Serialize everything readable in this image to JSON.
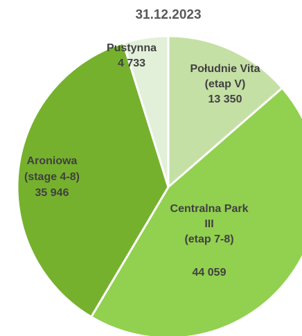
{
  "chart_data": {
    "type": "pie",
    "title": "31.12.2023",
    "categories": [
      [
        "Południe Vita",
        "(etap V)"
      ],
      [
        "Centralna Park",
        "III",
        "(etap 7-8)"
      ],
      [
        "Aroniowa",
        "(stage 4-8)"
      ],
      [
        "Pustynna"
      ]
    ],
    "values": [
      13350,
      44059,
      35946,
      4733
    ],
    "value_labels": [
      "13 350",
      "44 059",
      "35 946",
      "4 733"
    ],
    "colors": [
      "#c5e0a5",
      "#92d050",
      "#76b12e",
      "#e2f0d9"
    ]
  }
}
